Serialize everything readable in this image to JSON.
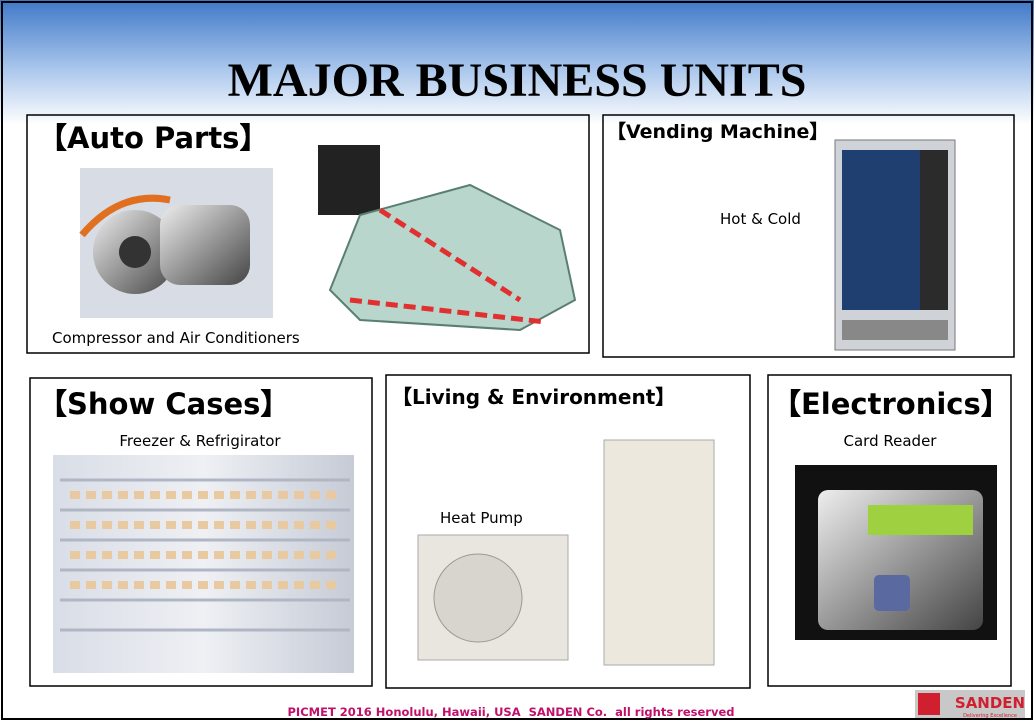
{
  "title": "MAJOR BUSINESS UNITS",
  "units": [
    {
      "heading": "【Auto Parts】",
      "caption": "Compressor and Air Conditioners"
    },
    {
      "heading": "【Vending Machine】",
      "caption": "Hot & Cold"
    },
    {
      "heading": "【Show Cases】",
      "caption": "Freezer & Refrigirator"
    },
    {
      "heading": "【Living & Environment】",
      "caption": "Heat Pump"
    },
    {
      "heading": "【Electronics】",
      "caption": "Card Reader"
    }
  ],
  "footer": "PICMET 2016 Honolulu, Hawaii, USA  SANDEN Co.  all rights reserved",
  "logo": {
    "name": "SANDEN",
    "tagline": "Delivering Excellence"
  }
}
